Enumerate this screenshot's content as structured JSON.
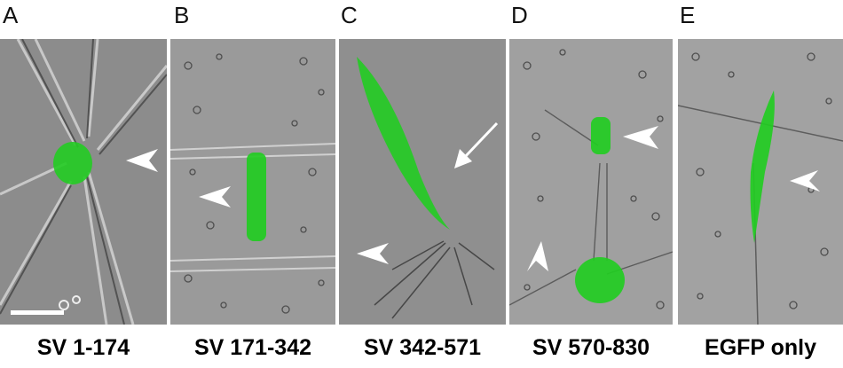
{
  "panels": [
    {
      "letter": "A",
      "caption": "SV 1-174"
    },
    {
      "letter": "B",
      "caption": "SV 171-342"
    },
    {
      "letter": "C",
      "caption": "SV 342-571"
    },
    {
      "letter": "D",
      "caption": "SV 570-830"
    },
    {
      "letter": "E",
      "caption": "EGFP only"
    }
  ],
  "colors": {
    "fluorescence": "#22cc22",
    "background": "#8e8e8e",
    "annotation": "#ffffff"
  }
}
